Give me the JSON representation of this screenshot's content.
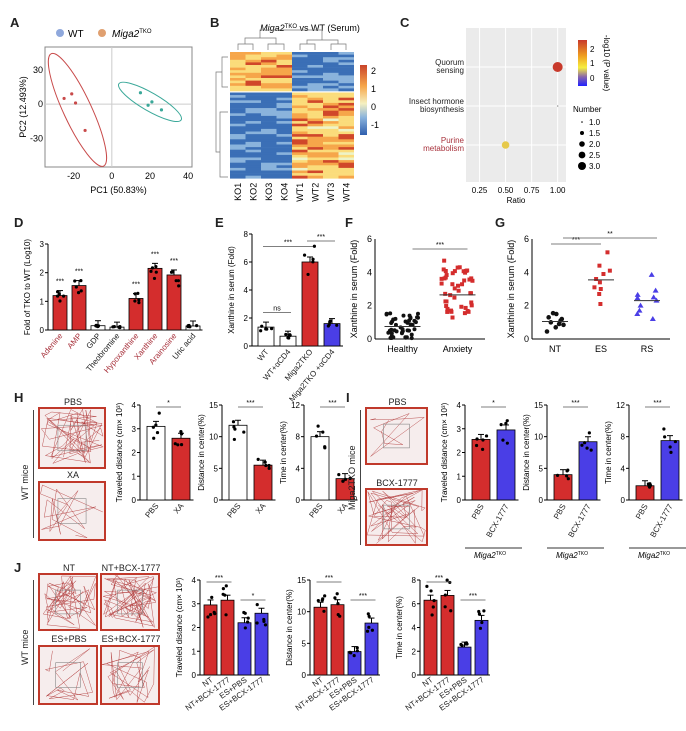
{
  "colors": {
    "red": "#d42d2d",
    "blue": "#4a3ee6",
    "black": "#111111",
    "white": "#ffffff",
    "wt_legend": "#8fa8dc",
    "ko_legend": "#e0a070",
    "ellipse_red": "#c84a4a",
    "ellipse_teal": "#3aa899",
    "label_red": "#a8323c"
  },
  "chart_data": [
    {
      "id": "A",
      "type": "scatter",
      "panel_label": "A",
      "legend": [
        {
          "name": "WT"
        },
        {
          "name": "Miga2",
          "sup": "TKO"
        }
      ],
      "xlabel": "PC1 (50.83%)",
      "ylabel": "PC2 (12.493%)",
      "xlim": [
        -35,
        42
      ],
      "ylim": [
        -55,
        50
      ],
      "xticks": [
        -20,
        0,
        20,
        40
      ],
      "yticks": [
        30,
        0,
        -30
      ],
      "series": [
        {
          "name": "Miga2TKO",
          "points": [
            [
              -25,
              5
            ],
            [
              -21,
              9
            ],
            [
              -19,
              1
            ],
            [
              -14,
              -23
            ]
          ]
        },
        {
          "name": "WT",
          "points": [
            [
              15,
              10
            ],
            [
              21,
              2
            ],
            [
              19,
              -1
            ],
            [
              26,
              -5
            ]
          ]
        }
      ]
    },
    {
      "id": "B",
      "type": "heatmap",
      "panel_label": "B",
      "title": "Miga2",
      "title_sup": "TKO",
      "title_rest": " vs WT (Serum)",
      "columns": [
        "KO1",
        "KO2",
        "KO3",
        "KO4",
        "WT1",
        "WT2",
        "WT3",
        "WT4"
      ],
      "colorbar_ticks": [
        2,
        1,
        0,
        -1
      ],
      "n_rows": 48
    },
    {
      "id": "C",
      "type": "scatter",
      "panel_label": "C",
      "xlabel": "Ratio",
      "xticks": [
        0.25,
        0.5,
        0.75,
        1.0
      ],
      "xtick_labels": [
        "0.25",
        "0.50",
        "0.75",
        "1.00"
      ],
      "xlim": [
        0.12,
        1.08
      ],
      "categories": [
        "Quorum sensing",
        "Insect hormone biosynthesis",
        "Purine metabolism"
      ],
      "category_lines": [
        [
          "Quorum",
          "sensing"
        ],
        [
          "Insect hormone",
          "biosynthesis"
        ],
        [
          "Purine",
          "metabolism"
        ]
      ],
      "points": [
        {
          "category": "Quorum sensing",
          "ratio": 1.0,
          "number": 3,
          "neglog10p": 2.5
        },
        {
          "category": "Insect hormone biosynthesis",
          "ratio": 1.0,
          "number": 1,
          "neglog10p": 0.3
        },
        {
          "category": "Purine metabolism",
          "ratio": 0.5,
          "number": 2,
          "neglog10p": 1.2
        }
      ],
      "colorbar_title": "-log10 (P value)",
      "colorbar_ticks": [
        2,
        1,
        0
      ],
      "size_legend_title": "Number",
      "size_legend": [
        "1.0",
        "1.5",
        "2.0",
        "2.5",
        "3.0"
      ]
    },
    {
      "id": "D",
      "type": "bar",
      "panel_label": "D",
      "ylabel": "Fold of TKO to WT (Log10)",
      "ylim": [
        0,
        3
      ],
      "yticks": [
        0,
        1,
        2,
        3
      ],
      "categories": [
        "Adenine",
        "AMP",
        "GDP",
        "Theobromine",
        "Hypoxanthine",
        "Xanthine",
        "Arainosine",
        "Uric acid"
      ],
      "values": [
        1.2,
        1.55,
        0.15,
        0.1,
        1.1,
        2.15,
        1.92,
        0.14
      ],
      "highlight": [
        true,
        true,
        false,
        false,
        true,
        true,
        true,
        false
      ],
      "sig": [
        "***",
        "***",
        "",
        "",
        "***",
        "***",
        "***",
        ""
      ]
    },
    {
      "id": "E",
      "type": "bar",
      "panel_label": "E",
      "ylabel": "Xanthine in serum (Fold)",
      "ylim": [
        0,
        8
      ],
      "yticks": [
        0,
        2,
        4,
        6,
        8
      ],
      "categories": [
        "WT",
        "WT+αCD4",
        "Miga2TKO",
        "Miga2TKO +αCD4"
      ],
      "values": [
        1.35,
        0.7,
        6.0,
        1.6
      ],
      "fills": [
        "white",
        "white",
        "red",
        "blue"
      ],
      "comparisons": [
        {
          "a": 0,
          "b": 1,
          "text": "ns"
        },
        {
          "a": 0,
          "b": 2,
          "text": "***"
        },
        {
          "a": 2,
          "b": 3,
          "text": "***"
        }
      ]
    },
    {
      "id": "F",
      "type": "scatter",
      "panel_label": "F",
      "ylabel": "Xanthine in serum (Fold)",
      "ylim": [
        0,
        6
      ],
      "yticks": [
        0,
        2,
        4,
        6
      ],
      "categories": [
        "Healthy",
        "Anxiety"
      ],
      "means": [
        0.75,
        2.65
      ],
      "sig": "***"
    },
    {
      "id": "G",
      "type": "scatter",
      "panel_label": "G",
      "ylabel": "Xanthine in serum (Fold)",
      "ylim": [
        0,
        6
      ],
      "yticks": [
        0,
        2,
        4,
        6
      ],
      "categories": [
        "NT",
        "ES",
        "RS"
      ],
      "means": [
        1.05,
        3.55,
        2.3
      ],
      "points": [
        [
          1.5,
          1.3,
          1.2,
          1.0,
          0.9,
          0.7,
          0.45,
          1.1,
          0.85,
          1.55
        ],
        [
          5.2,
          4.4,
          3.9,
          3.6,
          3.4,
          3.1,
          3.0,
          2.7,
          2.1,
          4.1
        ],
        [
          3.85,
          2.9,
          2.65,
          2.5,
          2.3,
          2.0,
          1.7,
          1.5,
          1.2,
          2.45
        ]
      ],
      "comparisons": [
        {
          "a": 0,
          "b": 1,
          "text": "***"
        },
        {
          "a": 0,
          "b": 2,
          "text": "**"
        }
      ]
    },
    {
      "id": "H",
      "type": "bar",
      "panel_label": "H",
      "group_label": "WT mice",
      "maze_labels": [
        "PBS",
        "XA"
      ],
      "subcharts": [
        {
          "ylabel": "Traveled distance (cm× 10³)",
          "ylim": [
            0,
            4
          ],
          "yticks": [
            0,
            1,
            2,
            3,
            4
          ],
          "categories": [
            "PBS",
            "XA"
          ],
          "values": [
            3.1,
            2.6
          ],
          "sig": "*",
          "fills": [
            "white",
            "red"
          ]
        },
        {
          "ylabel": "Distance in center(%)",
          "ylim": [
            0,
            15
          ],
          "yticks": [
            0,
            5,
            10,
            15
          ],
          "categories": [
            "PBS",
            "XA"
          ],
          "values": [
            11.8,
            5.5
          ],
          "sig": "***",
          "fills": [
            "white",
            "red"
          ]
        },
        {
          "ylabel": "Time in center(%)",
          "ylim": [
            0,
            12
          ],
          "yticks": [
            0,
            4,
            8,
            12
          ],
          "categories": [
            "PBS",
            "XA"
          ],
          "values": [
            8.0,
            2.7
          ],
          "sig": "***",
          "fills": [
            "white",
            "red"
          ]
        }
      ]
    },
    {
      "id": "I",
      "type": "bar",
      "panel_label": "I",
      "group_label": "Miga2TKO mice",
      "maze_labels": [
        "PBS",
        "BCX-1777"
      ],
      "footer": "Miga2",
      "footer_sup": "TKO",
      "subcharts": [
        {
          "ylabel": "Traveled distance (cm× 10³)",
          "ylim": [
            0,
            4
          ],
          "yticks": [
            0,
            1,
            2,
            3,
            4
          ],
          "categories": [
            "PBS",
            "BCX-1777"
          ],
          "values": [
            2.55,
            2.95
          ],
          "sig": "*",
          "fills": [
            "red",
            "blue"
          ]
        },
        {
          "ylabel": "Distance in center(%)",
          "ylim": [
            0,
            15
          ],
          "yticks": [
            0,
            5,
            10,
            15
          ],
          "categories": [
            "PBS",
            "BCX-1777"
          ],
          "values": [
            4.0,
            9.2
          ],
          "sig": "***",
          "fills": [
            "red",
            "blue"
          ]
        },
        {
          "ylabel": "Time in center(%)",
          "ylim": [
            0,
            12
          ],
          "yticks": [
            0,
            4,
            8,
            12
          ],
          "categories": [
            "PBS",
            "BCX-1777"
          ],
          "values": [
            1.8,
            7.5
          ],
          "sig": "***",
          "fills": [
            "red",
            "blue"
          ]
        }
      ]
    },
    {
      "id": "J",
      "type": "bar",
      "panel_label": "J",
      "group_label": "WT mice",
      "maze_labels": [
        "NT",
        "NT+BCX-1777",
        "ES+PBS",
        "ES+BCX-1777"
      ],
      "subcharts": [
        {
          "ylabel": "Traveled distance (cm× 10³)",
          "ylim": [
            0,
            4
          ],
          "yticks": [
            0,
            1,
            2,
            3,
            4
          ],
          "categories": [
            "NT",
            "NT+BCX-1777",
            "ES+PBS",
            "ES+BCX-1777"
          ],
          "values": [
            2.95,
            3.15,
            2.2,
            2.6
          ],
          "sigs": [
            {
              "a": 0,
              "b": 1,
              "text": "***"
            },
            {
              "a": 2,
              "b": 3,
              "text": "*"
            }
          ],
          "fills": [
            "red",
            "red",
            "blue",
            "blue"
          ]
        },
        {
          "ylabel": "Distance in center(%)",
          "ylim": [
            0,
            15
          ],
          "yticks": [
            0,
            5,
            10,
            15
          ],
          "categories": [
            "NT",
            "NT+BCX-1777",
            "ES+PBS",
            "ES+BCX-1777"
          ],
          "values": [
            10.7,
            11.1,
            3.7,
            8.2
          ],
          "sigs": [
            {
              "a": 0,
              "b": 1,
              "text": "***"
            },
            {
              "a": 2,
              "b": 3,
              "text": "***"
            }
          ],
          "fills": [
            "red",
            "red",
            "blue",
            "blue"
          ]
        },
        {
          "ylabel": "Time in center(%)",
          "ylim": [
            0,
            8
          ],
          "yticks": [
            0,
            2,
            4,
            6,
            8
          ],
          "categories": [
            "NT",
            "NT+BCX-1777",
            "ES+PBS",
            "ES+BCX-1777"
          ],
          "values": [
            6.3,
            6.7,
            2.35,
            4.6
          ],
          "sigs": [
            {
              "a": 0,
              "b": 1,
              "text": "***"
            },
            {
              "a": 2,
              "b": 3,
              "text": "***"
            }
          ],
          "fills": [
            "red",
            "red",
            "blue",
            "blue"
          ]
        }
      ]
    }
  ]
}
